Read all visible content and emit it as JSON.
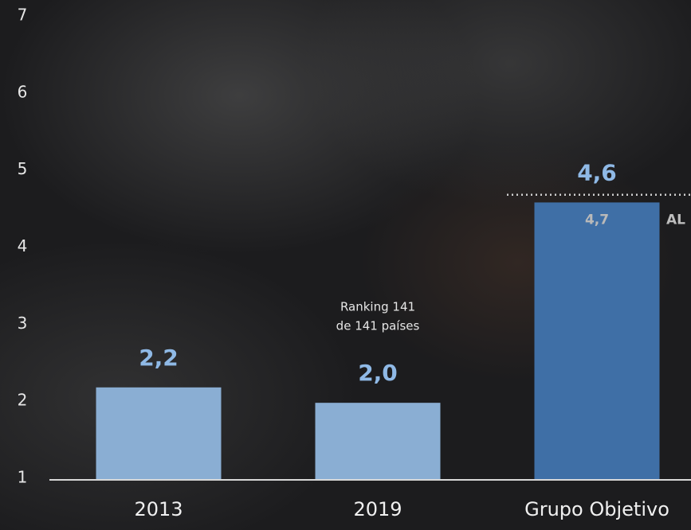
{
  "chart_data": {
    "type": "bar",
    "categories": [
      "2013",
      "2019",
      "Grupo Objetivo"
    ],
    "values": [
      2.2,
      2.0,
      4.6
    ],
    "value_labels": [
      "2,2",
      "2,0",
      "4,6"
    ],
    "colors": [
      "#8aaed3",
      "#8aaed3",
      "#3f6fa6"
    ],
    "ylim": [
      1,
      7
    ],
    "yticks": [
      1,
      2,
      3,
      4,
      5,
      6,
      7
    ],
    "annotation": [
      "Ranking 141",
      "de 141 países"
    ],
    "reference_line": {
      "value": 4.7,
      "value_label": "4,7",
      "label": "AL"
    }
  }
}
